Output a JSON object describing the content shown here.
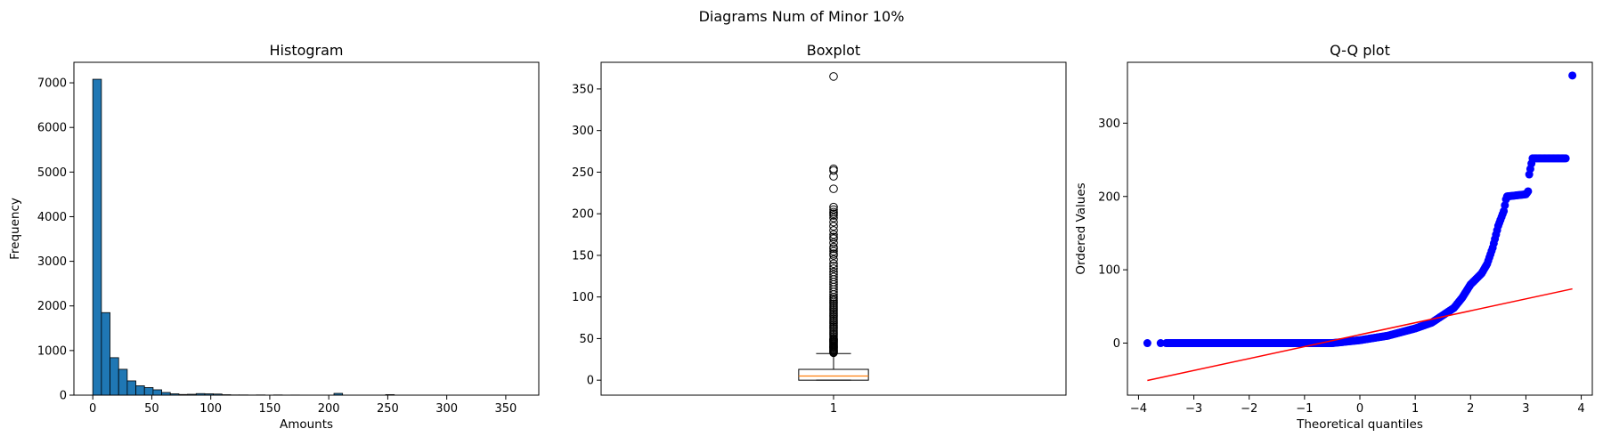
{
  "figure": {
    "suptitle": "Diagrams Num of Minor 10%"
  },
  "chart_data": [
    {
      "type": "histogram",
      "title": "Histogram",
      "xlabel": "Amounts",
      "ylabel": "Frequency",
      "xlim": [
        -16,
        378
      ],
      "ylim": [
        0,
        7460
      ],
      "xticks": [
        0,
        50,
        100,
        150,
        200,
        250,
        300,
        350
      ],
      "yticks": [
        0,
        1000,
        2000,
        3000,
        4000,
        5000,
        6000,
        7000
      ],
      "bin_width": 7.3,
      "bin_start": 0,
      "counts": [
        7080,
        1850,
        840,
        580,
        320,
        210,
        170,
        120,
        60,
        30,
        15,
        20,
        35,
        30,
        25,
        10,
        5,
        5,
        3,
        5,
        0,
        5,
        2,
        3,
        2,
        0,
        1,
        0,
        40,
        0,
        0,
        0,
        0,
        1,
        12,
        0,
        0,
        0,
        0,
        0,
        0,
        0,
        0,
        0,
        0,
        0,
        0,
        0,
        0,
        1
      ],
      "bar_color": "#1f77b4",
      "edge_color": "#000000"
    },
    {
      "type": "boxplot",
      "title": "Boxplot",
      "xticks": [
        "1"
      ],
      "ylim": [
        -18,
        382
      ],
      "yticks": [
        0,
        50,
        100,
        150,
        200,
        250,
        300,
        350
      ],
      "box": {
        "whislo": 0,
        "q1": 0,
        "med": 5,
        "q3": 13,
        "whishi": 32
      },
      "fliers": [
        33,
        34,
        35,
        36,
        37,
        38,
        39,
        40,
        41,
        42,
        43,
        44,
        45,
        46,
        47,
        48,
        49,
        50,
        52,
        54,
        56,
        58,
        60,
        62,
        64,
        66,
        68,
        70,
        72,
        74,
        76,
        78,
        80,
        82,
        84,
        86,
        88,
        90,
        92,
        94,
        96,
        98,
        100,
        103,
        106,
        109,
        112,
        115,
        118,
        121,
        124,
        127,
        130,
        134,
        137,
        140,
        145,
        150,
        152,
        155,
        158,
        160,
        165,
        170,
        172,
        175,
        180,
        185,
        190,
        195,
        198,
        200,
        202,
        205,
        208,
        230,
        245,
        252,
        254,
        365
      ],
      "median_color": "#ff7f0e"
    },
    {
      "type": "scatter",
      "title": "Q-Q plot",
      "xlabel": "Theoretical quantiles",
      "ylabel": "Ordered Values",
      "xlim": [
        -4.2,
        4.2
      ],
      "ylim": [
        -71,
        383
      ],
      "xticks": [
        -4,
        -3,
        -2,
        -1,
        0,
        1,
        2,
        3,
        4
      ],
      "yticks": [
        0,
        100,
        200,
        300
      ],
      "point_color": "#0000ff",
      "line_color": "#ff0000",
      "fit_line": {
        "x": [
          -3.84,
          3.84
        ],
        "y": [
          -51,
          74
        ]
      },
      "curve_knots": [
        [
          -3.84,
          0
        ],
        [
          -3.6,
          0
        ],
        [
          -0.5,
          0
        ],
        [
          0,
          4
        ],
        [
          0.5,
          10
        ],
        [
          1.0,
          20
        ],
        [
          1.3,
          28
        ],
        [
          1.5,
          38
        ],
        [
          1.7,
          48
        ],
        [
          1.85,
          62
        ],
        [
          2.0,
          80
        ],
        [
          2.2,
          95
        ],
        [
          2.3,
          108
        ],
        [
          2.4,
          130
        ],
        [
          2.5,
          160
        ],
        [
          2.6,
          180
        ],
        [
          2.65,
          200
        ],
        [
          3.0,
          203
        ],
        [
          3.05,
          208
        ],
        [
          3.06,
          230
        ],
        [
          3.1,
          245
        ],
        [
          3.12,
          252
        ],
        [
          3.73,
          252
        ]
      ],
      "extra_points": [
        [
          -3.84,
          0
        ],
        [
          -3.6,
          0
        ],
        [
          3.84,
          365
        ]
      ]
    }
  ]
}
